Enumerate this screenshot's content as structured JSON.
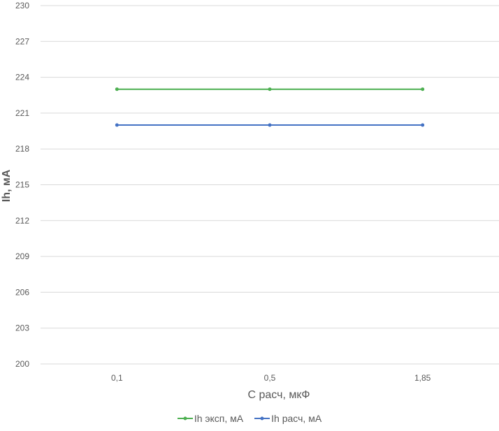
{
  "chart_data": {
    "type": "line",
    "title": "",
    "xlabel": "C расч, мкФ",
    "ylabel": "Ih, мА",
    "categories": [
      "0,1",
      "0,5",
      "1,85"
    ],
    "ylim": [
      200,
      230
    ],
    "yticks": [
      "200",
      "203",
      "206",
      "209",
      "212",
      "215",
      "218",
      "221",
      "224",
      "227",
      "230"
    ],
    "grid": true,
    "legend_position": "bottom",
    "series": [
      {
        "name": "Ih эксп, мА",
        "color": "#4caf50",
        "values": [
          223,
          223,
          223
        ]
      },
      {
        "name": "Ih расч, мА",
        "color": "#4472c4",
        "values": [
          220,
          220,
          220
        ]
      }
    ]
  }
}
